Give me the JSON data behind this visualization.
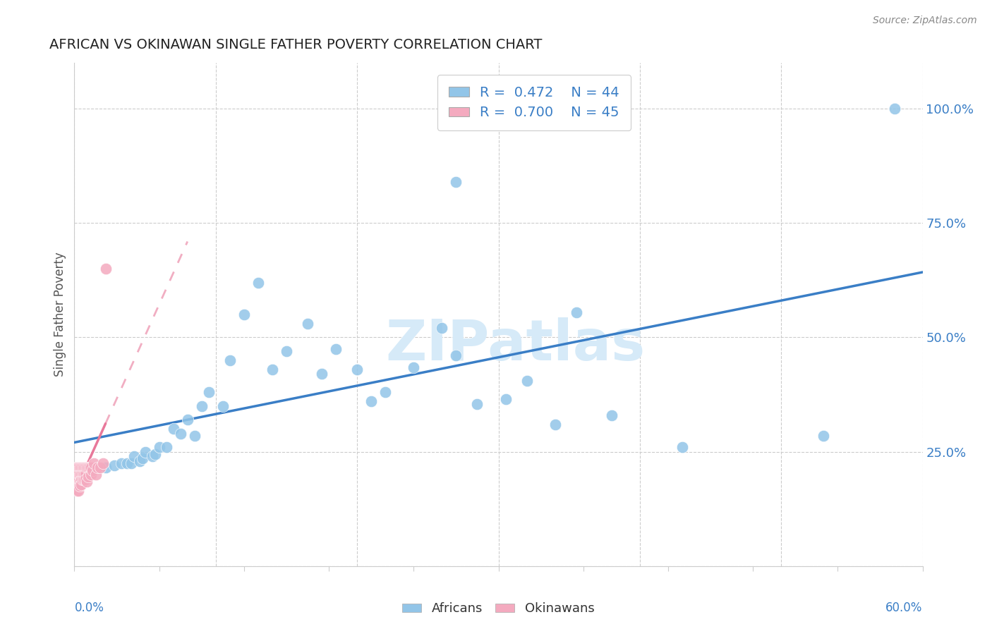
{
  "title": "AFRICAN VS OKINAWAN SINGLE FATHER POVERTY CORRELATION CHART",
  "source": "Source: ZipAtlas.com",
  "ylabel": "Single Father Poverty",
  "xlim": [
    0.0,
    0.6
  ],
  "ylim": [
    0.0,
    1.1
  ],
  "african_R": 0.472,
  "african_N": 44,
  "okinawan_R": 0.7,
  "okinawan_N": 45,
  "african_color": "#92C5E8",
  "okinawan_color": "#F4AABF",
  "african_line_color": "#3A7EC6",
  "okinawan_line_color": "#E8789A",
  "watermark": "ZIPatlas",
  "african_x": [
    0.022,
    0.028,
    0.033,
    0.037,
    0.04,
    0.042,
    0.046,
    0.048,
    0.05,
    0.055,
    0.057,
    0.06,
    0.065,
    0.07,
    0.075,
    0.08,
    0.085,
    0.09,
    0.095,
    0.105,
    0.11,
    0.12,
    0.13,
    0.14,
    0.15,
    0.165,
    0.175,
    0.185,
    0.2,
    0.21,
    0.22,
    0.24,
    0.26,
    0.27,
    0.285,
    0.305,
    0.32,
    0.34,
    0.355,
    0.38,
    0.43,
    0.53,
    0.58,
    0.27
  ],
  "african_y": [
    0.215,
    0.22,
    0.225,
    0.225,
    0.225,
    0.24,
    0.23,
    0.235,
    0.25,
    0.24,
    0.245,
    0.26,
    0.26,
    0.3,
    0.29,
    0.32,
    0.285,
    0.35,
    0.38,
    0.35,
    0.45,
    0.55,
    0.62,
    0.43,
    0.47,
    0.53,
    0.42,
    0.475,
    0.43,
    0.36,
    0.38,
    0.435,
    0.52,
    0.46,
    0.355,
    0.365,
    0.405,
    0.31,
    0.555,
    0.33,
    0.26,
    0.285,
    1.0,
    0.84
  ],
  "okinawan_x": [
    0.001,
    0.001,
    0.001,
    0.001,
    0.002,
    0.002,
    0.002,
    0.002,
    0.002,
    0.003,
    0.003,
    0.003,
    0.003,
    0.003,
    0.004,
    0.004,
    0.004,
    0.004,
    0.005,
    0.005,
    0.005,
    0.005,
    0.006,
    0.006,
    0.006,
    0.007,
    0.007,
    0.007,
    0.008,
    0.008,
    0.008,
    0.009,
    0.009,
    0.01,
    0.01,
    0.011,
    0.012,
    0.012,
    0.013,
    0.014,
    0.015,
    0.016,
    0.018,
    0.02,
    0.022
  ],
  "okinawan_y": [
    0.215,
    0.2,
    0.185,
    0.175,
    0.215,
    0.2,
    0.185,
    0.175,
    0.165,
    0.215,
    0.2,
    0.185,
    0.175,
    0.165,
    0.215,
    0.2,
    0.185,
    0.175,
    0.215,
    0.2,
    0.19,
    0.178,
    0.215,
    0.2,
    0.19,
    0.215,
    0.2,
    0.19,
    0.215,
    0.2,
    0.19,
    0.215,
    0.185,
    0.215,
    0.195,
    0.215,
    0.2,
    0.215,
    0.21,
    0.225,
    0.2,
    0.215,
    0.215,
    0.225,
    0.65
  ]
}
